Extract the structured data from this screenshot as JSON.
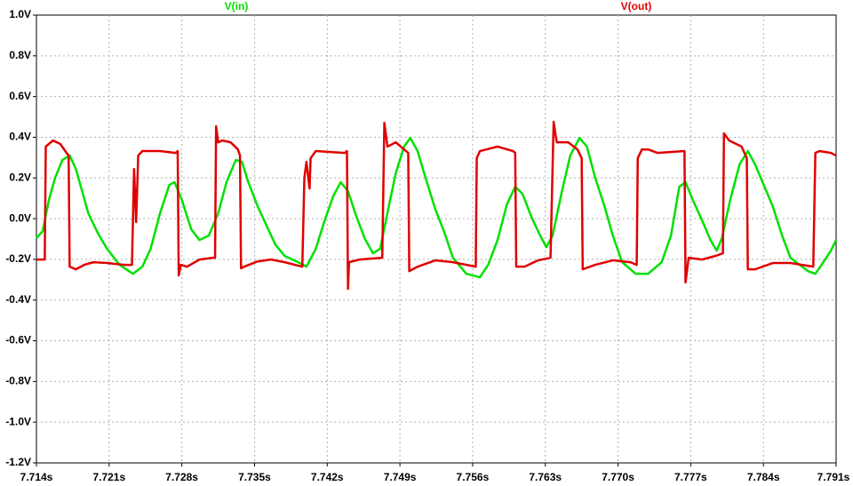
{
  "chart_data": {
    "type": "line",
    "xlim": [
      7.714,
      7.791
    ],
    "ylim": [
      -1.2,
      1.0
    ],
    "grid": true,
    "xticks": [
      {
        "value": 7.714,
        "label": "7.714s"
      },
      {
        "value": 7.721,
        "label": "7.721s"
      },
      {
        "value": 7.728,
        "label": "7.728s"
      },
      {
        "value": 7.735,
        "label": "7.735s"
      },
      {
        "value": 7.742,
        "label": "7.742s"
      },
      {
        "value": 7.749,
        "label": "7.749s"
      },
      {
        "value": 7.756,
        "label": "7.756s"
      },
      {
        "value": 7.763,
        "label": "7.763s"
      },
      {
        "value": 7.77,
        "label": "7.770s"
      },
      {
        "value": 7.777,
        "label": "7.777s"
      },
      {
        "value": 7.784,
        "label": "7.784s"
      },
      {
        "value": 7.791,
        "label": "7.791s"
      }
    ],
    "yticks": [
      {
        "value": 1.0,
        "label": "1.0V"
      },
      {
        "value": 0.8,
        "label": "0.8V"
      },
      {
        "value": 0.6,
        "label": "0.6V"
      },
      {
        "value": 0.4,
        "label": "0.4V"
      },
      {
        "value": 0.2,
        "label": "0.2V"
      },
      {
        "value": 0.0,
        "label": "0.0V"
      },
      {
        "value": -0.2,
        "label": "-0.2V"
      },
      {
        "value": -0.4,
        "label": "-0.4V"
      },
      {
        "value": -0.6,
        "label": "-0.6V"
      },
      {
        "value": -0.8,
        "label": "-0.8V"
      },
      {
        "value": -1.0,
        "label": "-1.0V"
      },
      {
        "value": -1.2,
        "label": "-1.2V"
      }
    ],
    "series": [
      {
        "name": "V(in)",
        "color": "#00e000",
        "x": [
          7.714,
          7.7146,
          7.7152,
          7.7158,
          7.7165,
          7.7172,
          7.7178,
          7.7184,
          7.719,
          7.7199,
          7.7208,
          7.722,
          7.7233,
          7.7242,
          7.725,
          7.7259,
          7.7268,
          7.7273,
          7.728,
          7.7289,
          7.7297,
          7.7306,
          7.7315,
          7.7323,
          7.7332,
          7.7338,
          7.7344,
          7.7353,
          7.7362,
          7.737,
          7.7379,
          7.7392,
          7.74,
          7.7409,
          7.7417,
          7.7426,
          7.7433,
          7.744,
          7.7447,
          7.7456,
          7.7464,
          7.7471,
          7.7477,
          7.7486,
          7.7494,
          7.75,
          7.7507,
          7.7516,
          7.7524,
          7.7533,
          7.7541,
          7.7554,
          7.7567,
          7.7575,
          7.7584,
          7.7593,
          7.7601,
          7.7608,
          7.7617,
          7.7625,
          7.7631,
          7.7637,
          7.7646,
          7.7654,
          7.7663,
          7.767,
          7.7678,
          7.7687,
          7.7695,
          7.7704,
          7.7717,
          7.7729,
          7.7742,
          7.7751,
          7.7759,
          7.7765,
          7.7772,
          7.7781,
          7.7789,
          7.7795,
          7.78,
          7.7808,
          7.7817,
          7.7825,
          7.7832,
          7.7841,
          7.7849,
          7.7858,
          7.7866,
          7.7875,
          7.7883,
          7.789,
          7.7896,
          7.7905,
          7.791
        ],
        "values": [
          -0.096,
          -0.061,
          0.092,
          0.201,
          0.288,
          0.31,
          0.244,
          0.135,
          0.026,
          -0.07,
          -0.148,
          -0.227,
          -0.271,
          -0.236,
          -0.148,
          0.026,
          0.166,
          0.179,
          0.092,
          -0.052,
          -0.105,
          -0.083,
          0.026,
          0.179,
          0.288,
          0.279,
          0.179,
          0.061,
          -0.039,
          -0.127,
          -0.183,
          -0.214,
          -0.236,
          -0.148,
          -0.017,
          0.113,
          0.179,
          0.135,
          0.026,
          -0.096,
          -0.17,
          -0.148,
          0.004,
          0.223,
          0.354,
          0.397,
          0.332,
          0.179,
          0.048,
          -0.07,
          -0.192,
          -0.271,
          -0.288,
          -0.227,
          -0.105,
          0.07,
          0.157,
          0.122,
          0.004,
          -0.083,
          -0.14,
          -0.083,
          0.135,
          0.31,
          0.397,
          0.354,
          0.201,
          0.061,
          -0.083,
          -0.214,
          -0.271,
          -0.271,
          -0.214,
          -0.083,
          0.157,
          0.179,
          0.092,
          -0.009,
          -0.105,
          -0.157,
          -0.096,
          0.092,
          0.266,
          0.332,
          0.266,
          0.157,
          0.061,
          -0.083,
          -0.192,
          -0.227,
          -0.258,
          -0.271,
          -0.227,
          -0.157,
          -0.105
        ]
      },
      {
        "name": "V(out)",
        "color": "#e00000",
        "x": [
          7.714,
          7.7148,
          7.7149,
          7.7152,
          7.7156,
          7.7163,
          7.7169,
          7.7171,
          7.7172,
          7.7178,
          7.7186,
          7.7195,
          7.7208,
          7.7225,
          7.7232,
          7.7234,
          7.7236,
          7.7238,
          7.7242,
          7.7259,
          7.7274,
          7.7276,
          7.7277,
          7.7279,
          7.7285,
          7.7297,
          7.731,
          7.7312,
          7.7313,
          7.7315,
          7.7319,
          7.7327,
          7.7334,
          7.7336,
          7.7337,
          7.734,
          7.7353,
          7.7366,
          7.7379,
          7.7396,
          7.7398,
          7.74,
          7.7403,
          7.7404,
          7.7409,
          7.7437,
          7.7439,
          7.744,
          7.7441,
          7.7451,
          7.7473,
          7.7475,
          7.7478,
          7.7486,
          7.7494,
          7.7498,
          7.7499,
          7.7507,
          7.7524,
          7.7541,
          7.7563,
          7.7564,
          7.7567,
          7.7584,
          7.7599,
          7.7601,
          7.7602,
          7.761,
          7.7623,
          7.7635,
          7.7638,
          7.7641,
          7.7652,
          7.7661,
          7.7665,
          7.7666,
          7.7678,
          7.7695,
          7.7712,
          7.7718,
          7.7719,
          7.7723,
          7.7729,
          7.7738,
          7.7764,
          7.7765,
          7.7768,
          7.7781,
          7.7794,
          7.7801,
          7.7802,
          7.7807,
          7.7819,
          7.7824,
          7.7825,
          7.7832,
          7.7849,
          7.7866,
          7.7888,
          7.789,
          7.7894,
          7.7905,
          7.791
        ],
        "values": [
          -0.201,
          -0.201,
          0.354,
          0.367,
          0.384,
          0.367,
          0.323,
          0.31,
          -0.236,
          -0.249,
          -0.227,
          -0.214,
          -0.218,
          -0.227,
          -0.227,
          0.244,
          -0.017,
          0.31,
          0.332,
          0.332,
          0.323,
          0.332,
          -0.279,
          -0.227,
          -0.236,
          -0.201,
          -0.192,
          -0.192,
          0.454,
          0.375,
          0.384,
          0.375,
          0.34,
          0.31,
          -0.244,
          -0.236,
          -0.21,
          -0.201,
          -0.214,
          -0.236,
          0.201,
          0.279,
          0.148,
          0.297,
          0.332,
          0.323,
          0.332,
          -0.345,
          -0.214,
          -0.201,
          -0.192,
          0.471,
          0.354,
          0.375,
          0.34,
          0.323,
          -0.258,
          -0.236,
          -0.205,
          -0.214,
          -0.236,
          0.297,
          0.332,
          0.354,
          0.332,
          0.323,
          -0.236,
          -0.236,
          -0.205,
          -0.192,
          0.476,
          0.375,
          0.375,
          0.34,
          0.297,
          -0.249,
          -0.227,
          -0.205,
          -0.214,
          -0.227,
          0.297,
          0.34,
          0.34,
          0.323,
          0.332,
          -0.314,
          -0.192,
          -0.201,
          -0.183,
          -0.17,
          0.419,
          0.384,
          0.354,
          0.297,
          -0.249,
          -0.249,
          -0.218,
          -0.218,
          -0.236,
          0.323,
          0.332,
          0.323,
          0.31
        ]
      }
    ]
  }
}
